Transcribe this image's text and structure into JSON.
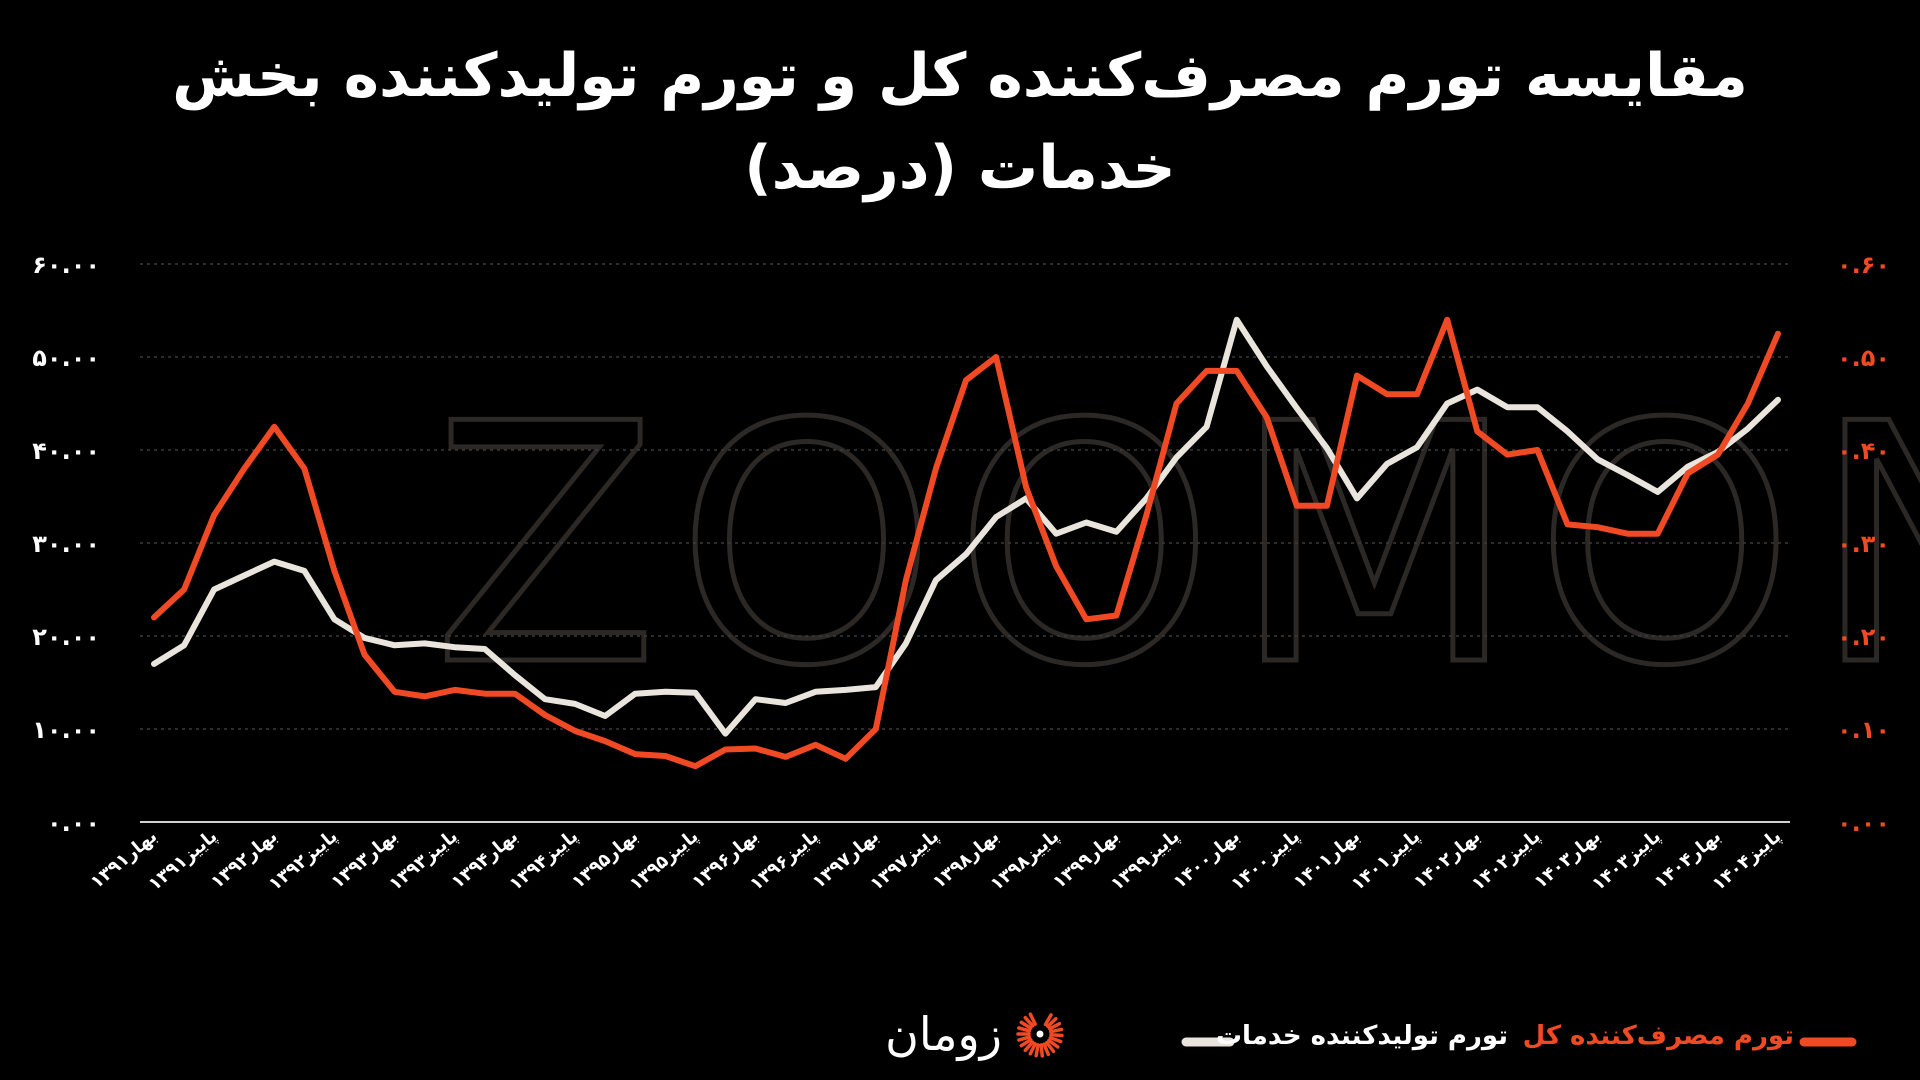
{
  "colors": {
    "background": "#000000",
    "producer_series": "#e9e4dc",
    "consumer_series": "#f04a24",
    "grid": "#3a3a3a",
    "text": "#ffffff"
  },
  "watermark": "ZOOMON",
  "brand": {
    "name": "زومان",
    "icon": "sunburst-logo-icon"
  },
  "chart_data": {
    "type": "line",
    "title": "مقایسه تورم مصرف‌کننده کل و تورم تولیدکننده بخش خدمات (درصد)",
    "y_left_ticks": [
      "۶۰.۰۰",
      "۵۰.۰۰",
      "۴۰.۰۰",
      "۳۰.۰۰",
      "۲۰.۰۰",
      "۱۰.۰۰",
      "۰.۰۰"
    ],
    "y_right_ticks": [
      "۰.۶۰",
      "۰.۵۰",
      "۰.۴۰",
      "۰.۳۰",
      "۰.۲۰",
      "۰.۱۰",
      "۰.۰۰"
    ],
    "ylim_left": [
      0,
      60
    ],
    "ylim_right": [
      0,
      0.6
    ],
    "grid": true,
    "legend_position": "bottom",
    "x_tick_labels": [
      "بهار۱۳۹۱",
      "پاییز۱۳۹۱",
      "بهار۱۳۹۲",
      "پاییز۱۳۹۲",
      "بهار۱۳۹۳",
      "پاییز۱۳۹۳",
      "بهار۱۳۹۴",
      "پاییز۱۳۹۴",
      "بهار۱۳۹۵",
      "پاییز۱۳۹۵",
      "بهار۱۳۹۶",
      "پاییز۱۳۹۶",
      "بهار۱۳۹۷",
      "پاییز۱۳۹۷",
      "بهار۱۳۹۸",
      "پاییز۱۳۹۸",
      "بهار۱۳۹۹",
      "پاییز۱۳۹۹",
      "بهار۱۴۰۰",
      "پاییز۱۴۰۰",
      "بهار۱۴۰۱",
      "پاییز۱۴۰۱",
      "بهار۱۴۰۲",
      "پاییز۱۴۰۲",
      "بهار۱۴۰۳",
      "پاییز۱۴۰۳",
      "بهار۱۴۰۴",
      "پاییز۱۴۰۴"
    ],
    "x_tick_period_positions": [
      0,
      2,
      4,
      6,
      8,
      10,
      12,
      14,
      16,
      18,
      20,
      22,
      24,
      26,
      28,
      30,
      32,
      34,
      36,
      38,
      40,
      42,
      44,
      46,
      48,
      50,
      52,
      54
    ],
    "series": [
      {
        "name": "تورم تولیدکننده خدمات",
        "axis": "left",
        "color": "#e9e4dc",
        "values": [
          17.0,
          19.0,
          25.0,
          26.5,
          28.0,
          27.0,
          21.8,
          19.8,
          19.0,
          19.2,
          18.8,
          18.6,
          15.8,
          13.2,
          12.7,
          11.4,
          13.8,
          14.0,
          13.9,
          9.5,
          13.2,
          12.8,
          14.0,
          14.2,
          14.5,
          19.2,
          26.0,
          28.8,
          32.8,
          34.8,
          31.0,
          32.2,
          31.2,
          34.8,
          39.2,
          42.5,
          54.0,
          49.0,
          44.5,
          40.2,
          34.8,
          38.5,
          40.3,
          45.0,
          46.5,
          44.6,
          44.6,
          42.0,
          39.0,
          37.3,
          35.5,
          38.2,
          39.8,
          42.3,
          45.4
        ]
      },
      {
        "name": "تورم مصرف‌کننده کل",
        "axis": "right",
        "color": "#f04a24",
        "values": [
          0.22,
          0.25,
          0.33,
          0.38,
          0.425,
          0.38,
          0.27,
          0.18,
          0.14,
          0.135,
          0.142,
          0.138,
          0.138,
          0.115,
          0.098,
          0.087,
          0.073,
          0.071,
          0.06,
          0.078,
          0.079,
          0.07,
          0.083,
          0.068,
          0.1,
          0.26,
          0.38,
          0.475,
          0.5,
          0.36,
          0.275,
          0.218,
          0.222,
          0.33,
          0.45,
          0.485,
          0.485,
          0.435,
          0.34,
          0.34,
          0.48,
          0.46,
          0.46,
          0.54,
          0.42,
          0.395,
          0.4,
          0.32,
          0.317,
          0.31,
          0.31,
          0.375,
          0.395,
          0.45,
          0.525
        ]
      }
    ]
  }
}
